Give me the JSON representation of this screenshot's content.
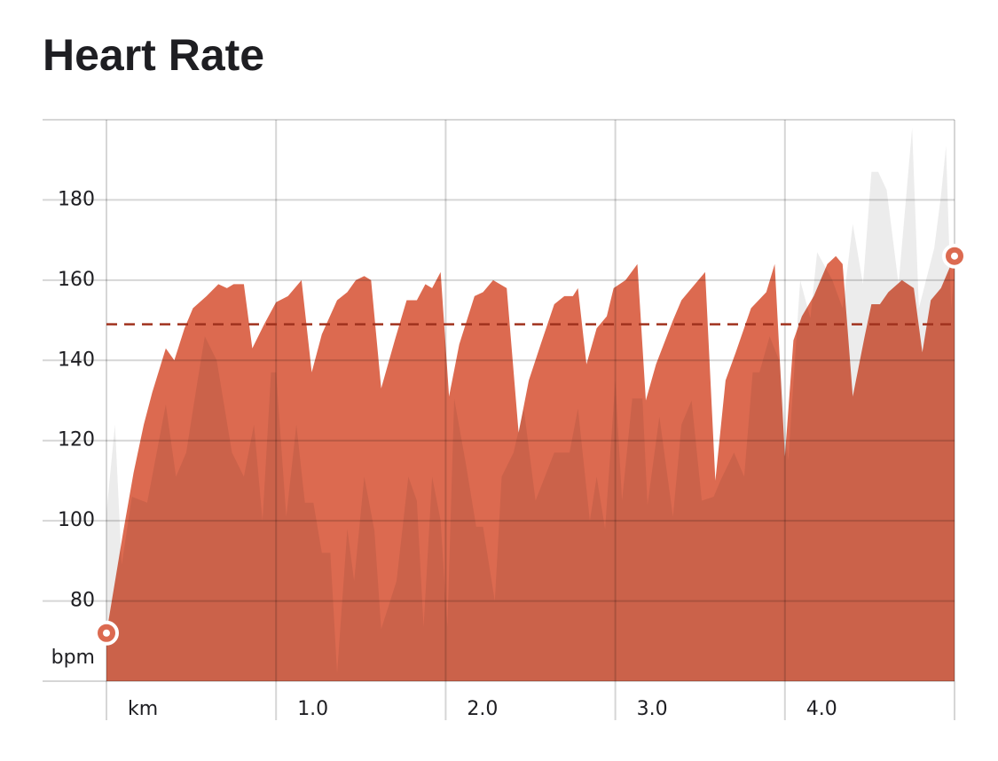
{
  "chart_data": {
    "type": "area",
    "title": "Heart Rate",
    "xlim": [
      0,
      5
    ],
    "ylim": [
      60,
      200
    ],
    "xticks": [
      {
        "value": 0,
        "label": "km"
      },
      {
        "value": 1,
        "label": "1.0"
      },
      {
        "value": 2,
        "label": "2.0"
      },
      {
        "value": 3,
        "label": "3.0"
      },
      {
        "value": 4,
        "label": "4.0"
      }
    ],
    "yticks": [
      {
        "value": 60,
        "label": "bpm"
      },
      80,
      100,
      120,
      140,
      160,
      180
    ],
    "grid": true,
    "reference_line": 149,
    "reference_color": "#a0321e",
    "series": [
      {
        "color": "#dc6a50",
        "opacity": 1,
        "end_markers": true,
        "x": [
          0,
          0.1,
          0.16,
          0.22,
          0.27,
          0.35,
          0.4,
          0.46,
          0.51,
          0.59,
          0.66,
          0.71,
          0.75,
          0.81,
          0.86,
          0.93,
          1.0,
          1.07,
          1.15,
          1.21,
          1.27,
          1.36,
          1.42,
          1.47,
          1.52,
          1.56,
          1.62,
          1.7,
          1.77,
          1.83,
          1.88,
          1.92,
          1.97,
          2.02,
          2.08,
          2.17,
          2.22,
          2.28,
          2.36,
          2.43,
          2.49,
          2.56,
          2.64,
          2.7,
          2.75,
          2.78,
          2.83,
          2.89,
          2.95,
          2.99,
          3.06,
          3.13,
          3.18,
          3.24,
          3.34,
          3.39,
          3.45,
          3.53,
          3.59,
          3.65,
          3.71,
          3.8,
          3.89,
          3.94,
          4.0,
          4.05,
          4.1,
          4.17,
          4.25,
          4.3,
          4.34,
          4.4,
          4.47,
          4.51,
          4.56,
          4.61,
          4.69,
          4.76,
          4.81,
          4.86,
          4.92,
          5.0
        ],
        "values": [
          72,
          97.5,
          112,
          124,
          132,
          143,
          140,
          148,
          153,
          156,
          159,
          158,
          159,
          159,
          143,
          149,
          154.5,
          156,
          160,
          137,
          146.5,
          155,
          157,
          160,
          161,
          160,
          133,
          145,
          155,
          155,
          159,
          158,
          162,
          131,
          144,
          156,
          157,
          160,
          158,
          122,
          135,
          144,
          154,
          156,
          156,
          158,
          139,
          148,
          151,
          158,
          160,
          164,
          130,
          139,
          150,
          155,
          158,
          162,
          110,
          135,
          142,
          153,
          157,
          164,
          116,
          145,
          151,
          156,
          164,
          166,
          164,
          131,
          146,
          154,
          154,
          157,
          160,
          158,
          142,
          155,
          158,
          166
        ]
      },
      {
        "color": "#000000",
        "opacity": 0.075,
        "end_markers": false,
        "x": [
          0,
          0.05,
          0.09,
          0.15,
          0.24,
          0.35,
          0.41,
          0.47,
          0.53,
          0.58,
          0.65,
          0.74,
          0.81,
          0.87,
          0.92,
          0.97,
          1.0,
          1.06,
          1.12,
          1.17,
          1.22,
          1.27,
          1.32,
          1.36,
          1.42,
          1.46,
          1.52,
          1.58,
          1.62,
          1.71,
          1.78,
          1.83,
          1.87,
          1.92,
          1.97,
          2.01,
          2.05,
          2.12,
          2.18,
          2.22,
          2.29,
          2.33,
          2.4,
          2.46,
          2.53,
          2.64,
          2.73,
          2.78,
          2.85,
          2.89,
          2.94,
          3.0,
          3.04,
          3.1,
          3.16,
          3.19,
          3.26,
          3.34,
          3.39,
          3.45,
          3.51,
          3.58,
          3.62,
          3.7,
          3.76,
          3.81,
          3.85,
          3.91,
          3.97,
          4.02,
          4.09,
          4.15,
          4.19,
          4.28,
          4.34,
          4.4,
          4.46,
          4.51,
          4.55,
          4.6,
          4.67,
          4.75,
          4.79,
          4.88,
          4.92,
          4.95,
          4.98,
          5.0
        ],
        "values": [
          102,
          124,
          89,
          106,
          104.5,
          129,
          111,
          117,
          133,
          146,
          140,
          117,
          111,
          124,
          100,
          137,
          137,
          101,
          124,
          104.5,
          104.5,
          92,
          92,
          62,
          98,
          85,
          111,
          97.5,
          73,
          85,
          111,
          105,
          73.5,
          111,
          100,
          73.5,
          130.5,
          114,
          98.5,
          98.5,
          80,
          111,
          117,
          128,
          105,
          117,
          117,
          128,
          100,
          111,
          98,
          135,
          105,
          130.5,
          130.5,
          104,
          126,
          101,
          124,
          130,
          105,
          106,
          110,
          117,
          111,
          137,
          137,
          146,
          139.5,
          115,
          160,
          150.5,
          167,
          160,
          153,
          174,
          159,
          187,
          187,
          182.5,
          159,
          198,
          153,
          168,
          181,
          193.5,
          153,
          164
        ]
      }
    ]
  }
}
